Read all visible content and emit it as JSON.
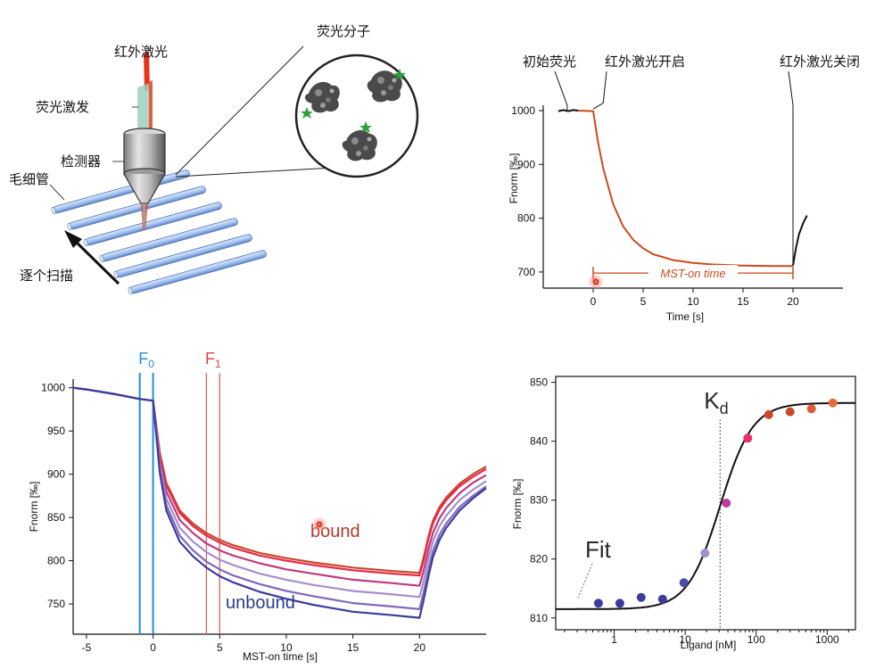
{
  "setup": {
    "labels": {
      "fluor_molecule": "荧光分子",
      "ir_laser": "红外激光",
      "fluor_excite": "荧光激发",
      "detector": "检测器",
      "capillary": "毛细管",
      "scan": "逐个扫描"
    }
  },
  "trace_top": {
    "annotations": {
      "initial": "初始荧光",
      "laser_on": "红外激光开启",
      "laser_off": "红外激光关闭",
      "mst_on": "MST-on time"
    },
    "chart_data": {
      "type": "line",
      "xlabel": "Time [s]",
      "ylabel": "Fnorm [‰]",
      "xlim": [
        -5,
        25
      ],
      "ylim": [
        670,
        1010
      ],
      "x_ticks": [
        "0",
        "5",
        "10",
        "15",
        "20"
      ],
      "y_ticks": [
        "700",
        "800",
        "900",
        "1000"
      ],
      "series": [
        {
          "color": "#cc4a1e",
          "x": [
            -1.5,
            0,
            0.5,
            1,
            2,
            3,
            4,
            5,
            6,
            8,
            10,
            12,
            15,
            18,
            20
          ],
          "y": [
            1000,
            999,
            940,
            893,
            826,
            785,
            760,
            744,
            733,
            722,
            717,
            714,
            712,
            711,
            711
          ]
        },
        {
          "color": "#111111",
          "x": [
            -3.5,
            -3,
            -2.5,
            -2,
            -1.5
          ],
          "y": [
            999,
            1001,
            999,
            1001,
            1000
          ]
        },
        {
          "color": "#111111",
          "x": [
            20,
            20.3,
            20.6,
            21,
            21.4
          ],
          "y": [
            712,
            745,
            770,
            790,
            805
          ]
        }
      ]
    }
  },
  "mst_traces": {
    "annotations": {
      "f0": "F0",
      "f1": "F1",
      "bound": "bound",
      "unbound": "unbound"
    },
    "chart_data": {
      "type": "line",
      "xlabel": "MST-on time [s]",
      "ylabel": "Fnorm [‰]",
      "xlim": [
        -6,
        25
      ],
      "ylim": [
        715,
        1010
      ],
      "x_ticks": [
        "-5",
        "0",
        "5",
        "10",
        "15",
        "20"
      ],
      "y_ticks": [
        "750",
        "800",
        "850",
        "900",
        "950",
        "1000"
      ],
      "f0_window": [
        -1,
        0
      ],
      "f1_window": [
        4,
        5
      ],
      "x": [
        -6,
        -5,
        -3,
        -1,
        0,
        0.5,
        1,
        2,
        3,
        4,
        5,
        6,
        8,
        10,
        12,
        15,
        18,
        20,
        20.3,
        20.7,
        21,
        21.5,
        22,
        23,
        24,
        25
      ],
      "series": [
        {
          "color": "#c84a2a",
          "y": [
            1000,
            998,
            993,
            987,
            985,
            925,
            890,
            858,
            843,
            832,
            824,
            818,
            809,
            803,
            798,
            792,
            788,
            786,
            803,
            830,
            846,
            862,
            873,
            889,
            900,
            909
          ]
        },
        {
          "color": "#e8284a",
          "y": [
            1000,
            998,
            993,
            987,
            985,
            923,
            887,
            855,
            840,
            829,
            821,
            815,
            806,
            800,
            795,
            789,
            785,
            783,
            800,
            827,
            843,
            859,
            870,
            886,
            897,
            906
          ]
        },
        {
          "color": "#c03a7c",
          "y": [
            1000,
            998,
            993,
            987,
            985,
            918,
            880,
            847,
            832,
            820,
            812,
            806,
            797,
            790,
            785,
            778,
            774,
            771,
            788,
            815,
            832,
            849,
            861,
            878,
            890,
            899
          ]
        },
        {
          "color": "#a48fcc",
          "y": [
            1000,
            998,
            993,
            987,
            985,
            912,
            872,
            838,
            822,
            810,
            801,
            795,
            785,
            778,
            772,
            765,
            761,
            758,
            776,
            804,
            822,
            840,
            852,
            870,
            882,
            892
          ]
        },
        {
          "color": "#7f6aba",
          "y": [
            1000,
            998,
            993,
            987,
            985,
            906,
            864,
            829,
            812,
            799,
            790,
            783,
            773,
            765,
            759,
            751,
            747,
            744,
            763,
            792,
            811,
            830,
            843,
            862,
            875,
            886
          ]
        },
        {
          "color": "#3b3c9c",
          "y": [
            1000,
            998,
            993,
            987,
            985,
            902,
            858,
            822,
            805,
            792,
            782,
            775,
            764,
            756,
            749,
            741,
            737,
            734,
            754,
            784,
            804,
            824,
            838,
            858,
            872,
            884
          ]
        }
      ]
    }
  },
  "binding_curve": {
    "annotations": {
      "kd": "Kd",
      "fit": "Fit"
    },
    "chart_data": {
      "type": "scatter",
      "xlabel": "Ligand [nM]",
      "ylabel": "Fnorm [‰]",
      "xscale": "log",
      "xlim": [
        0.15,
        2500
      ],
      "ylim": [
        808,
        851
      ],
      "x_ticks": [
        "1",
        "10",
        "100",
        "1000"
      ],
      "y_ticks": [
        "810",
        "820",
        "830",
        "840",
        "850"
      ],
      "kd": 31,
      "fit": {
        "bottom": 811.5,
        "top": 846.5,
        "kd": 31,
        "hill": 1.9
      },
      "points": [
        {
          "x": 0.6,
          "y": 812.5,
          "color": "#3b3c9c"
        },
        {
          "x": 1.2,
          "y": 812.5,
          "color": "#3b3c9c"
        },
        {
          "x": 2.4,
          "y": 813.5,
          "color": "#3b3c9c"
        },
        {
          "x": 4.8,
          "y": 813.2,
          "color": "#3b3c9c"
        },
        {
          "x": 9.6,
          "y": 816,
          "color": "#4a4aaa"
        },
        {
          "x": 19,
          "y": 821,
          "color": "#a48fcc"
        },
        {
          "x": 38,
          "y": 829.5,
          "color": "#c03a9c"
        },
        {
          "x": 76,
          "y": 840.5,
          "color": "#e8306a"
        },
        {
          "x": 150,
          "y": 844.5,
          "color": "#c84a2a"
        },
        {
          "x": 300,
          "y": 845,
          "color": "#c84a2a"
        },
        {
          "x": 600,
          "y": 845.5,
          "color": "#e05a3a"
        },
        {
          "x": 1200,
          "y": 846.5,
          "color": "#e86a3a"
        }
      ]
    }
  }
}
